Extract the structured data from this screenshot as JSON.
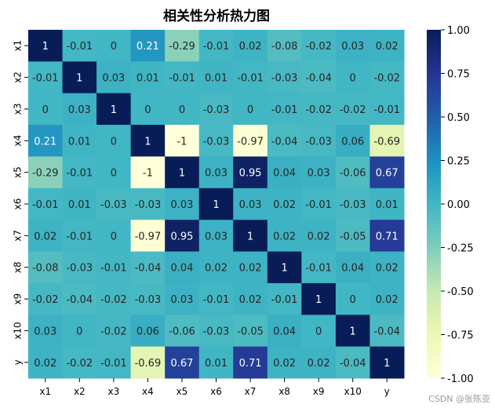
{
  "chart_data": {
    "type": "heatmap",
    "title": "相关性分析热力图",
    "row_labels": [
      "x1",
      "x2",
      "x3",
      "x4",
      "x5",
      "x6",
      "x7",
      "x8",
      "x9",
      "x10",
      "y"
    ],
    "col_labels": [
      "x1",
      "x2",
      "x3",
      "x4",
      "x5",
      "x6",
      "x7",
      "x8",
      "x9",
      "x10",
      "y"
    ],
    "values": [
      [
        1,
        -0.01,
        0,
        0.21,
        -0.29,
        -0.01,
        0.02,
        -0.08,
        -0.02,
        0.03,
        0.02
      ],
      [
        -0.01,
        1,
        0.03,
        0.01,
        -0.01,
        0.01,
        -0.01,
        -0.03,
        -0.04,
        0,
        -0.02
      ],
      [
        0,
        0.03,
        1,
        0,
        0,
        -0.03,
        0,
        -0.01,
        -0.02,
        -0.02,
        -0.01
      ],
      [
        0.21,
        0.01,
        0,
        1,
        -1,
        -0.03,
        -0.97,
        -0.04,
        -0.03,
        0.06,
        -0.69
      ],
      [
        -0.29,
        -0.01,
        0,
        -1,
        1,
        0.03,
        0.95,
        0.04,
        0.03,
        -0.06,
        0.67
      ],
      [
        -0.01,
        0.01,
        -0.03,
        -0.03,
        0.03,
        1,
        0.03,
        0.02,
        -0.01,
        -0.03,
        0.01
      ],
      [
        0.02,
        -0.01,
        0,
        -0.97,
        0.95,
        0.03,
        1,
        0.02,
        0.02,
        -0.05,
        0.71
      ],
      [
        -0.08,
        -0.03,
        -0.01,
        -0.04,
        0.04,
        0.02,
        0.02,
        1,
        -0.01,
        0.04,
        0.02
      ],
      [
        -0.02,
        -0.04,
        -0.02,
        -0.03,
        0.03,
        -0.01,
        0.02,
        -0.01,
        1,
        0,
        0.02
      ],
      [
        0.03,
        0,
        -0.02,
        0.06,
        -0.06,
        -0.03,
        -0.05,
        0.04,
        0,
        1,
        -0.04
      ],
      [
        0.02,
        -0.02,
        -0.01,
        -0.69,
        0.67,
        0.01,
        0.71,
        0.02,
        0.02,
        -0.04,
        1
      ]
    ],
    "colorscale": "YlGnBu",
    "vmin": -1,
    "vmax": 1,
    "colorbar_ticks": [
      "-1.00",
      "-0.75",
      "-0.50",
      "-0.25",
      "0.00",
      "0.25",
      "0.50",
      "0.75",
      "1.00"
    ]
  },
  "watermark": "CSDN @张陈亚"
}
